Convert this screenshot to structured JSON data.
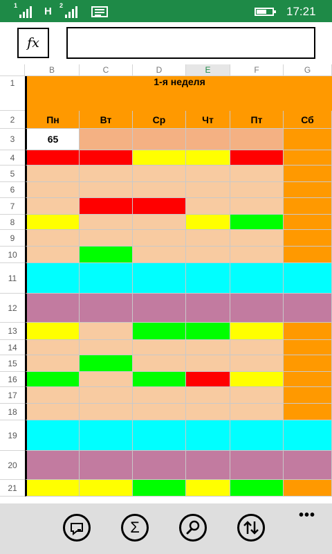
{
  "status_bar": {
    "sim1": "1",
    "sim2": "2",
    "network": "H",
    "time": "17:21"
  },
  "formula_bar": {
    "fx_label": "fx",
    "value": ""
  },
  "sheet": {
    "columns": [
      "B",
      "C",
      "D",
      "E",
      "F",
      "G"
    ],
    "selected_column": "E",
    "rows": [
      "1",
      "2",
      "3",
      "4",
      "5",
      "6",
      "7",
      "8",
      "9",
      "10",
      "11",
      "12",
      "13",
      "14",
      "15",
      "16",
      "17",
      "18",
      "19",
      "20",
      "21"
    ],
    "title": "1-я неделя",
    "days": [
      "Пн",
      "Вт",
      "Ср",
      "Чт",
      "Пт",
      "Сб"
    ],
    "value_B3": "65",
    "colors": {
      "orange": "#ff9900",
      "peach": "#f8cba1",
      "tan": "#f4b183",
      "red": "#ff0000",
      "yellow": "#ffff00",
      "green": "#00ff00",
      "cyan": "#00ffff",
      "mauve": "#c27ba0",
      "white": "#ffffff"
    },
    "cell_colors": [
      [
        "white",
        "tan",
        "tan",
        "tan",
        "tan",
        "orange"
      ],
      [
        "red",
        "red",
        "yellow",
        "yellow",
        "red",
        "orange"
      ],
      [
        "peach",
        "peach",
        "peach",
        "peach",
        "peach",
        "orange"
      ],
      [
        "peach",
        "peach",
        "peach",
        "peach",
        "peach",
        "orange"
      ],
      [
        "peach",
        "red",
        "red",
        "peach",
        "peach",
        "orange"
      ],
      [
        "yellow",
        "peach",
        "peach",
        "yellow",
        "green",
        "orange"
      ],
      [
        "peach",
        "peach",
        "peach",
        "peach",
        "peach",
        "orange"
      ],
      [
        "peach",
        "green",
        "peach",
        "peach",
        "peach",
        "orange"
      ],
      [
        "cyan",
        "cyan",
        "cyan",
        "cyan",
        "cyan",
        "cyan"
      ],
      [
        "mauve",
        "mauve",
        "mauve",
        "mauve",
        "mauve",
        "mauve"
      ],
      [
        "yellow",
        "peach",
        "green",
        "green",
        "yellow",
        "orange"
      ],
      [
        "peach",
        "peach",
        "peach",
        "peach",
        "peach",
        "orange"
      ],
      [
        "peach",
        "green",
        "peach",
        "peach",
        "peach",
        "orange"
      ],
      [
        "green",
        "peach",
        "green",
        "red",
        "yellow",
        "orange"
      ],
      [
        "peach",
        "peach",
        "peach",
        "peach",
        "peach",
        "orange"
      ],
      [
        "peach",
        "peach",
        "peach",
        "peach",
        "peach",
        "orange"
      ],
      [
        "cyan",
        "cyan",
        "cyan",
        "cyan",
        "cyan",
        "cyan"
      ],
      [
        "mauve",
        "mauve",
        "mauve",
        "mauve",
        "mauve",
        "mauve"
      ],
      [
        "yellow",
        "yellow",
        "green",
        "yellow",
        "green",
        "orange"
      ]
    ]
  },
  "app_bar": {
    "buttons": [
      {
        "icon": "comment-icon"
      },
      {
        "icon": "sum-icon",
        "glyph": "Σ"
      },
      {
        "icon": "find-icon"
      },
      {
        "icon": "sort-icon"
      }
    ],
    "more": "•••"
  }
}
